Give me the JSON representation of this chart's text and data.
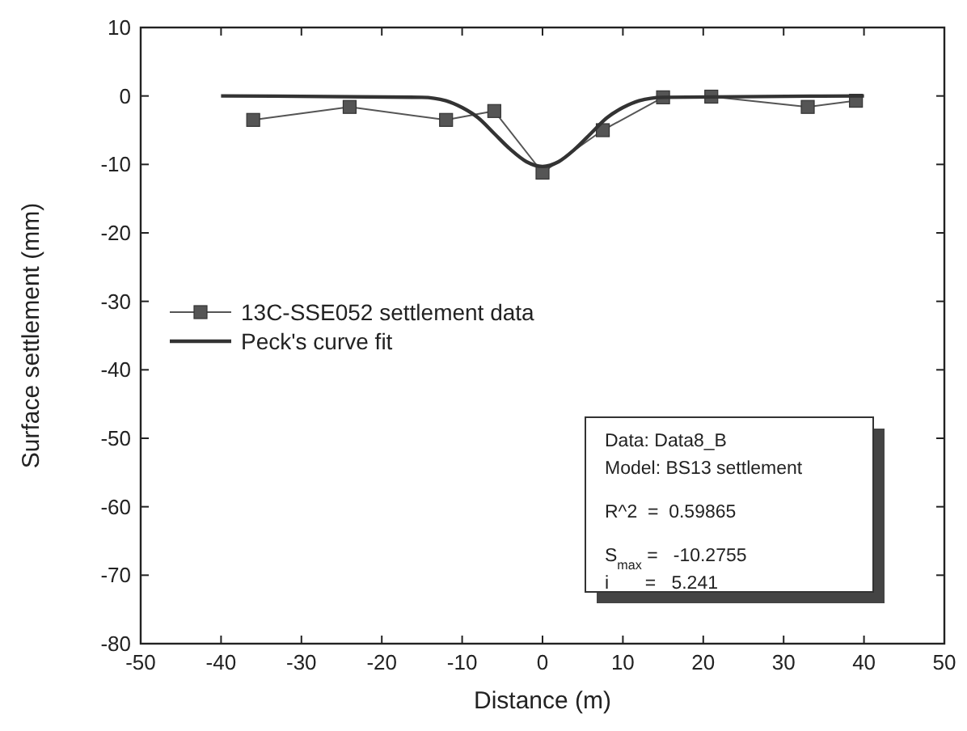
{
  "chart_data": {
    "type": "line",
    "xlabel": "Distance (m)",
    "ylabel": "Surface settlement (mm)",
    "xlim": [
      -50,
      50
    ],
    "xticks": [
      -50,
      -40,
      -30,
      -20,
      -10,
      0,
      10,
      20,
      30,
      40,
      50
    ],
    "ylim": [
      -80,
      10
    ],
    "yticks": [
      10,
      0,
      -10,
      -20,
      -30,
      -40,
      -50,
      -60,
      -70,
      -80
    ],
    "grid": false,
    "legend": "left",
    "series": [
      {
        "name": "13C-SSE052 settlement data",
        "color": "#555555",
        "marker": "square",
        "x": [
          -36,
          -24,
          -12,
          -6,
          0,
          7.5,
          15,
          21,
          33,
          39
        ],
        "values": [
          -3.5,
          -1.6,
          -3.5,
          -2.2,
          -11.2,
          -5,
          -0.2,
          -0.1,
          -1.6,
          -0.7
        ]
      },
      {
        "name": "Peck's curve fit",
        "color": "#333333",
        "marker": "none",
        "x": [
          -40,
          -15,
          -12,
          -10,
          -8,
          -6,
          -4,
          -2,
          0,
          2,
          4,
          6,
          8,
          10,
          12,
          15,
          40
        ],
        "values": [
          0,
          -0.2,
          -0.7,
          -1.7,
          -3.2,
          -5.5,
          -7.8,
          -9.6,
          -10.3,
          -9.6,
          -7.8,
          -5.5,
          -3.2,
          -1.7,
          -0.7,
          -0.2,
          0
        ]
      }
    ],
    "annotations": [
      "Data: Data8_B",
      "Model: BS13 settlement",
      "R^2  =  0.59865",
      "S$_{max}$ =   -10.2755",
      "i       =   5.241"
    ]
  }
}
